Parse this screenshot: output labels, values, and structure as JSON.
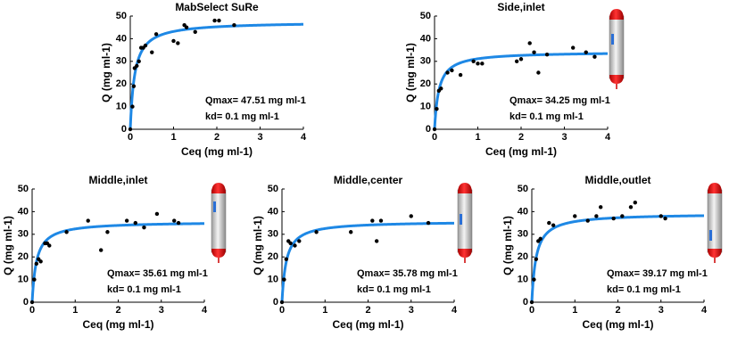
{
  "chart_data": [
    {
      "type": "scatter",
      "title": "MabSelect SuRe",
      "xlabel": "Ceq (mg ml-1)",
      "ylabel": "Q (mg ml-1)",
      "x": [
        0,
        0.05,
        0.08,
        0.1,
        0.15,
        0.2,
        0.25,
        0.3,
        0.35,
        0.5,
        0.6,
        1.0,
        1.1,
        1.25,
        1.3,
        1.5,
        1.95,
        2.05,
        2.4
      ],
      "values": [
        0,
        10,
        19,
        27,
        28,
        30,
        36,
        36,
        37,
        34,
        42,
        39,
        38,
        46,
        45,
        43,
        48,
        48,
        46
      ],
      "color": "#000000",
      "fit": {
        "qmax": 47.51,
        "kd": 0.1,
        "color": "#1e88e5"
      },
      "annotations": [
        "Qmax= 47.51 mg ml-1",
        "kd= 0.1 mg ml-1"
      ],
      "xlim": [
        0,
        4
      ],
      "xticks": [
        0,
        1,
        2,
        3,
        4
      ],
      "ylim": [
        0,
        50
      ],
      "yticks": [
        0,
        10,
        20,
        30,
        40,
        50
      ]
    },
    {
      "type": "scatter",
      "title": "Side,inlet",
      "xlabel": "Ceq (mg ml-1)",
      "ylabel": "Q (mg ml-1)",
      "x": [
        0,
        0.05,
        0.1,
        0.15,
        0.3,
        0.4,
        0.6,
        0.9,
        1.0,
        1.1,
        1.9,
        2.0,
        2.2,
        2.3,
        2.4,
        2.6,
        3.2,
        3.5,
        3.7
      ],
      "values": [
        0,
        9,
        17,
        18,
        25,
        26,
        24,
        30,
        29,
        29,
        30,
        31,
        38,
        34,
        25,
        33,
        36,
        34,
        32
      ],
      "color": "#000000",
      "fit": {
        "qmax": 34.25,
        "kd": 0.1,
        "color": "#1e88e5"
      },
      "annotations": [
        "Qmax= 34.25 mg ml-1",
        "kd= 0.1 mg ml-1"
      ],
      "xlim": [
        0,
        4
      ],
      "xticks": [
        0,
        1,
        2,
        3,
        4
      ],
      "ylim": [
        0,
        50
      ],
      "yticks": [
        0,
        10,
        20,
        30,
        40,
        50
      ]
    },
    {
      "type": "scatter",
      "title": "Middle,inlet",
      "xlabel": "Ceq (mg ml-1)",
      "ylabel": "Q (mg ml-1)",
      "x": [
        0,
        0.05,
        0.1,
        0.15,
        0.2,
        0.3,
        0.35,
        0.4,
        0.8,
        1.3,
        1.6,
        1.75,
        2.2,
        2.4,
        2.6,
        2.9,
        3.3,
        3.4
      ],
      "values": [
        0,
        10,
        17,
        19,
        18,
        26,
        26,
        25,
        31,
        36,
        23,
        31,
        36,
        35,
        33,
        39,
        36,
        35
      ],
      "color": "#000000",
      "fit": {
        "qmax": 35.61,
        "kd": 0.1,
        "color": "#1e88e5"
      },
      "annotations": [
        "Qmax= 35.61 mg ml-1",
        "kd= 0.1 mg ml-1"
      ],
      "xlim": [
        0,
        4
      ],
      "xticks": [
        0,
        1,
        2,
        3,
        4
      ],
      "ylim": [
        0,
        50
      ],
      "yticks": [
        0,
        10,
        20,
        30,
        40,
        50
      ]
    },
    {
      "type": "scatter",
      "title": "Middle,center",
      "xlabel": "Ceq (mg ml-1)",
      "ylabel": "Q (mg ml-1)",
      "x": [
        0,
        0.05,
        0.1,
        0.15,
        0.2,
        0.3,
        0.4,
        0.8,
        1.6,
        2.1,
        2.2,
        2.3,
        3.0,
        3.4
      ],
      "values": [
        0,
        10,
        19,
        27,
        26,
        25,
        27,
        31,
        31,
        36,
        27,
        36,
        38,
        35
      ],
      "color": "#000000",
      "fit": {
        "qmax": 35.78,
        "kd": 0.1,
        "color": "#1e88e5"
      },
      "annotations": [
        "Qmax= 35.78 mg ml-1",
        "kd= 0.1 mg ml-1"
      ],
      "xlim": [
        0,
        4
      ],
      "xticks": [
        0,
        1,
        2,
        3,
        4
      ],
      "ylim": [
        0,
        50
      ],
      "yticks": [
        0,
        10,
        20,
        30,
        40,
        50
      ]
    },
    {
      "type": "scatter",
      "title": "Middle,outlet",
      "xlabel": "Ceq (mg ml-1)",
      "ylabel": "Q (mg ml-1)",
      "x": [
        0,
        0.05,
        0.1,
        0.15,
        0.2,
        0.4,
        0.5,
        1.0,
        1.3,
        1.5,
        1.6,
        1.9,
        2.1,
        2.3,
        2.4,
        3.0,
        3.1
      ],
      "values": [
        0,
        10,
        19,
        27,
        28,
        35,
        34,
        38,
        36,
        38,
        42,
        37,
        38,
        42,
        44,
        38,
        37
      ],
      "color": "#000000",
      "fit": {
        "qmax": 39.17,
        "kd": 0.1,
        "color": "#1e88e5"
      },
      "annotations": [
        "Qmax= 39.17 mg ml-1",
        "kd= 0.1 mg ml-1"
      ],
      "xlim": [
        0,
        4
      ],
      "xticks": [
        0,
        1,
        2,
        3,
        4
      ],
      "ylim": [
        0,
        50
      ],
      "yticks": [
        0,
        10,
        20,
        30,
        40,
        50
      ]
    }
  ]
}
